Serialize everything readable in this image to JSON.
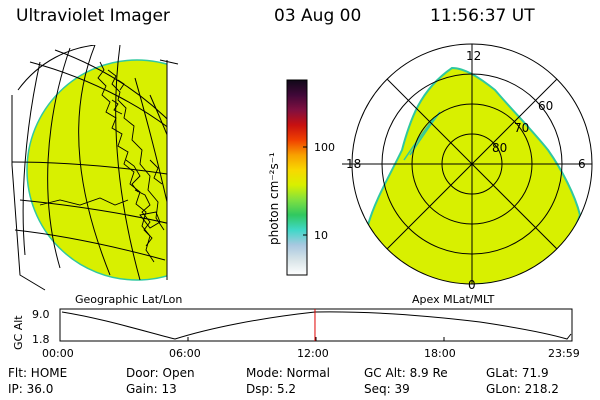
{
  "header": {
    "title": "Ultraviolet Imager",
    "date": "03 Aug 00",
    "time": "11:56:37 UT"
  },
  "left_panel": {
    "label": "Geographic Lat/Lon"
  },
  "right_panel": {
    "label": "Apex MLat/MLT",
    "mlt_labels": {
      "top": "12",
      "left": "18",
      "right": "6",
      "bottom": "0"
    },
    "lat_labels": [
      "60",
      "70",
      "80"
    ]
  },
  "colorbar": {
    "unit": "photon cm⁻²s⁻¹",
    "ticks": [
      "100",
      "10"
    ],
    "colors": [
      "#ffffff",
      "#d8e4e8",
      "#a8c8e0",
      "#40d8c8",
      "#30c860",
      "#80e040",
      "#d8f000",
      "#f8d800",
      "#f8a000",
      "#f04000",
      "#c81010",
      "#801040",
      "#400838",
      "#100818"
    ]
  },
  "altitude_plot": {
    "ylabel": "GC Alt",
    "yticks": [
      "9.0",
      "1.8"
    ],
    "xticks": [
      "00:00",
      "06:00",
      "12:00",
      "18:00",
      "23:59"
    ],
    "current_fraction": 0.498
  },
  "info": {
    "row1": {
      "flt": "Flt: HOME",
      "door": "Door: Open",
      "mode": "Mode: Normal",
      "gcalt": "GC Alt: 8.9 Re",
      "glat": "GLat:  71.9"
    },
    "row2": {
      "ip": "IP: 36.0",
      "gain": "Gain: 13",
      "dsp": "Dsp:     5.2",
      "seq": "Seq: 39",
      "glon": "GLon: 218.2"
    }
  },
  "colors": {
    "image_fill": "#d8f000",
    "image_edge": "#30c8a0",
    "marker": "#e00000"
  }
}
